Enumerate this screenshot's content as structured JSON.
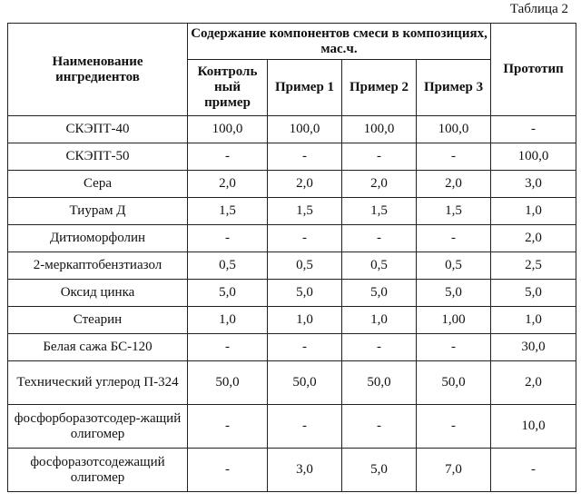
{
  "caption": "Таблица 2",
  "header": {
    "ingredient_col": "Наименование ингредиентов",
    "group": "Содержание компонентов смеси в композициях, мас.ч.",
    "columns": [
      "Контроль ный пример",
      "Пример 1",
      "Пример 2",
      "Пример 3"
    ],
    "prototype": "Прототип"
  },
  "rows": [
    {
      "name": "СКЭПТ-40",
      "values": [
        "100,0",
        "100,0",
        "100,0",
        "100,0",
        "-"
      ]
    },
    {
      "name": "СКЭПТ-50",
      "values": [
        "-",
        "-",
        "-",
        "-",
        "100,0"
      ]
    },
    {
      "name": "Сера",
      "values": [
        "2,0",
        "2,0",
        "2,0",
        "2,0",
        "3,0"
      ]
    },
    {
      "name": "Тиурам Д",
      "values": [
        "1,5",
        "1,5",
        "1,5",
        "1,5",
        "1,0"
      ]
    },
    {
      "name": "Дитиоморфолин",
      "values": [
        "-",
        "-",
        "-",
        "-",
        "2,0"
      ]
    },
    {
      "name": "2-меркаптобензтиазол",
      "values": [
        "0,5",
        "0,5",
        "0,5",
        "0,5",
        "2,5"
      ]
    },
    {
      "name": "Оксид цинка",
      "values": [
        "5,0",
        "5,0",
        "5,0",
        "5,0",
        "5,0"
      ]
    },
    {
      "name": "Стеарин",
      "values": [
        "1,0",
        "1,0",
        "1,0",
        "1,00",
        "1,0"
      ]
    },
    {
      "name": "Белая сажа БС-120",
      "values": [
        "-",
        "-",
        "-",
        "-",
        "30,0"
      ]
    },
    {
      "name": "Технический углерод П-324",
      "values": [
        "50,0",
        "50,0",
        "50,0",
        "50,0",
        "2,0"
      ]
    },
    {
      "name": "фосфорборазотсодер-жащий олигомер",
      "values": [
        "-",
        "-",
        "-",
        "-",
        "10,0"
      ]
    },
    {
      "name": "фосфоразотсодежащий олигомер",
      "values": [
        "-",
        "3,0",
        "5,0",
        "7,0",
        "-"
      ]
    }
  ]
}
